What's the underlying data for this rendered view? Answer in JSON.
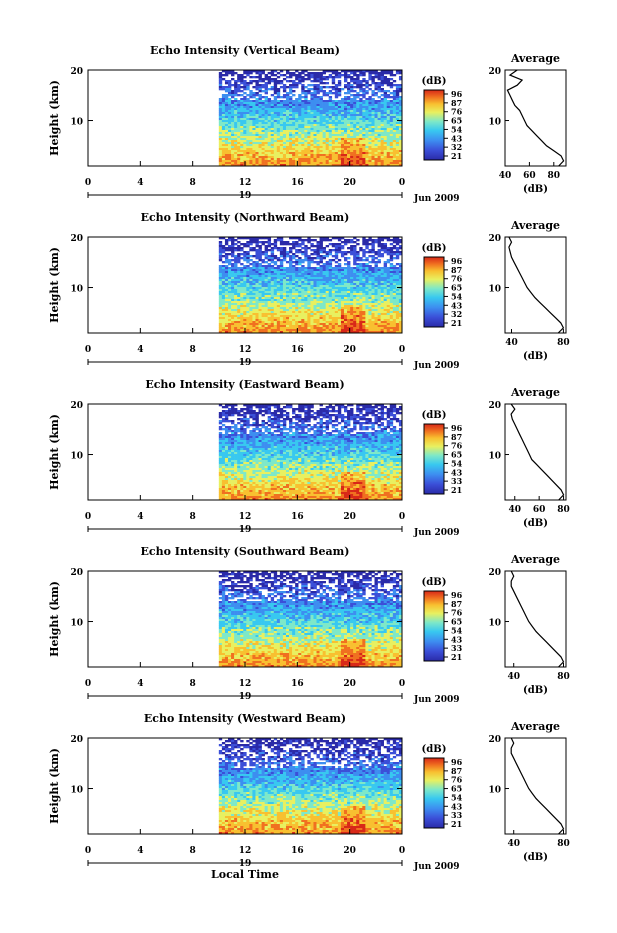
{
  "figure": {
    "xlabel": "Local Time",
    "colorbar_unit": "(dB)",
    "average_title": "Average",
    "average_xlabel": "(dB)"
  },
  "chart_data": [
    {
      "type": "heatmap",
      "title": "Echo Intensity (Vertical Beam)",
      "ylabel": "Height (km)",
      "ylim": [
        1,
        20
      ],
      "yticks": [
        10,
        20
      ],
      "xlim": [
        0,
        24
      ],
      "xtick_labels": [
        "0",
        "4",
        "8",
        "12",
        "16",
        "20",
        "0"
      ],
      "date_labels": [
        "19",
        "Jun 2009"
      ],
      "data_start_hour": 10,
      "colorbar": {
        "ticks": [
          "96",
          "87",
          "76",
          "65",
          "54",
          "43",
          "32",
          "21"
        ]
      },
      "average": {
        "xlim": [
          40,
          90
        ],
        "xtick_labels": [
          "40",
          "60",
          "80"
        ],
        "height": [
          1,
          2,
          3,
          4,
          5,
          6,
          7,
          8,
          9,
          10,
          11,
          12,
          13,
          14,
          15,
          16,
          17,
          18,
          19,
          20
        ],
        "value": [
          84,
          88,
          86,
          80,
          74,
          70,
          66,
          62,
          58,
          56,
          54,
          52,
          48,
          46,
          44,
          42,
          50,
          54,
          44,
          50
        ]
      }
    },
    {
      "type": "heatmap",
      "title": "Echo Intensity (Northward Beam)",
      "ylabel": "Height (km)",
      "ylim": [
        1,
        20
      ],
      "yticks": [
        10,
        20
      ],
      "xlim": [
        0,
        24
      ],
      "xtick_labels": [
        "0",
        "4",
        "8",
        "12",
        "16",
        "20",
        "0"
      ],
      "date_labels": [
        "19",
        "Jun 2009"
      ],
      "data_start_hour": 10,
      "colorbar": {
        "ticks": [
          "96",
          "87",
          "76",
          "65",
          "54",
          "43",
          "32",
          "21"
        ]
      },
      "average": {
        "xlim": [
          35,
          82
        ],
        "xtick_labels": [
          "40",
          "80"
        ],
        "height": [
          1,
          2,
          3,
          4,
          5,
          6,
          7,
          8,
          9,
          10,
          11,
          12,
          13,
          14,
          15,
          16,
          17,
          18,
          19,
          20
        ],
        "value": [
          76,
          80,
          78,
          74,
          70,
          66,
          62,
          58,
          55,
          52,
          50,
          48,
          46,
          44,
          42,
          40,
          39,
          38,
          40,
          38
        ]
      }
    },
    {
      "type": "heatmap",
      "title": "Echo Intensity (Eastward Beam)",
      "ylabel": "Height (km)",
      "ylim": [
        1,
        20
      ],
      "yticks": [
        10,
        20
      ],
      "xlim": [
        0,
        24
      ],
      "xtick_labels": [
        "0",
        "4",
        "8",
        "12",
        "16",
        "20",
        "0"
      ],
      "date_labels": [
        "19",
        "Jun 2009"
      ],
      "data_start_hour": 10,
      "colorbar": {
        "ticks": [
          "96",
          "87",
          "76",
          "65",
          "54",
          "43",
          "33",
          "21"
        ]
      },
      "average": {
        "xlim": [
          32,
          82
        ],
        "xtick_labels": [
          "40",
          "60",
          "80"
        ],
        "height": [
          1,
          2,
          3,
          4,
          5,
          6,
          7,
          8,
          9,
          10,
          11,
          12,
          13,
          14,
          15,
          16,
          17,
          18,
          19,
          20
        ],
        "value": [
          76,
          80,
          78,
          74,
          70,
          66,
          62,
          58,
          54,
          52,
          50,
          48,
          46,
          44,
          42,
          40,
          38,
          37,
          40,
          37
        ]
      }
    },
    {
      "type": "heatmap",
      "title": "Echo Intensity (Southward Beam)",
      "ylabel": "Height (km)",
      "ylim": [
        1,
        20
      ],
      "yticks": [
        10,
        20
      ],
      "xlim": [
        0,
        24
      ],
      "xtick_labels": [
        "0",
        "4",
        "8",
        "12",
        "16",
        "20",
        "0"
      ],
      "date_labels": [
        "19",
        "Jun 2009"
      ],
      "data_start_hour": 10,
      "colorbar": {
        "ticks": [
          "96",
          "87",
          "76",
          "65",
          "54",
          "43",
          "33",
          "21"
        ]
      },
      "average": {
        "xlim": [
          33,
          82
        ],
        "xtick_labels": [
          "40",
          "80"
        ],
        "height": [
          1,
          2,
          3,
          4,
          5,
          6,
          7,
          8,
          9,
          10,
          11,
          12,
          13,
          14,
          15,
          16,
          17,
          18,
          19,
          20
        ],
        "value": [
          76,
          80,
          78,
          74,
          70,
          66,
          62,
          58,
          55,
          52,
          50,
          48,
          46,
          44,
          42,
          40,
          38,
          38,
          40,
          38
        ]
      }
    },
    {
      "type": "heatmap",
      "title": "Echo Intensity (Westward Beam)",
      "ylabel": "Height (km)",
      "ylim": [
        1,
        20
      ],
      "yticks": [
        10,
        20
      ],
      "xlim": [
        0,
        24
      ],
      "xtick_labels": [
        "0",
        "4",
        "8",
        "12",
        "16",
        "20",
        "0"
      ],
      "date_labels": [
        "19",
        "Jun 2009"
      ],
      "data_start_hour": 10,
      "colorbar": {
        "ticks": [
          "96",
          "87",
          "76",
          "65",
          "54",
          "43",
          "33",
          "21"
        ]
      },
      "average": {
        "xlim": [
          33,
          82
        ],
        "xtick_labels": [
          "40",
          "80"
        ],
        "height": [
          1,
          2,
          3,
          4,
          5,
          6,
          7,
          8,
          9,
          10,
          11,
          12,
          13,
          14,
          15,
          16,
          17,
          18,
          19,
          20
        ],
        "value": [
          76,
          80,
          78,
          74,
          70,
          66,
          62,
          58,
          55,
          52,
          50,
          48,
          46,
          44,
          42,
          40,
          38,
          38,
          40,
          38
        ]
      }
    }
  ]
}
